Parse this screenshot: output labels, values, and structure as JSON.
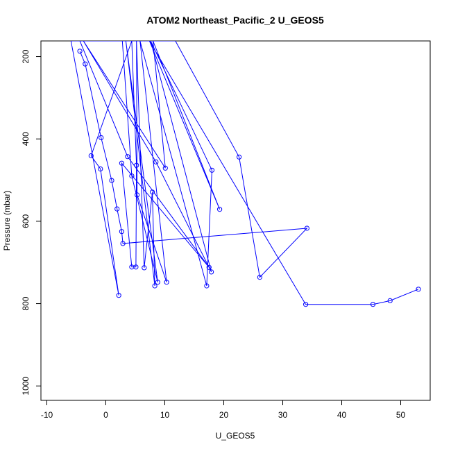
{
  "chart_data": {
    "type": "line",
    "title": "ATOM2 Northeast_Pacific_2 U_GEOS5",
    "xlabel": "U_GEOS5",
    "ylabel": "Pressure (mbar)",
    "xlim": [
      -11,
      55
    ],
    "ylim": [
      1035,
      162
    ],
    "y_reversed": true,
    "xticks": [
      -10,
      0,
      10,
      20,
      30,
      40,
      50
    ],
    "yticks": [
      200,
      400,
      600,
      800,
      1000
    ],
    "grid": false,
    "legend": "none",
    "colors": {
      "series": "#0000ff",
      "axis": "#000000"
    },
    "series": [
      {
        "marker": "open-circle",
        "points": [
          [
            -4.4,
            187
          ],
          [
            -3.5,
            218
          ],
          [
            -0.8,
            397
          ],
          [
            1.0,
            501
          ],
          [
            1.9,
            570
          ],
          [
            2.7,
            625
          ],
          [
            2.9,
            654
          ],
          [
            34.1,
            617
          ],
          [
            26.1,
            736
          ],
          [
            22.6,
            444
          ],
          [
            11.8,
            162
          ],
          [
            -5.9,
            162
          ],
          [
            2.2,
            780
          ],
          [
            -0.9,
            473
          ],
          [
            -2.5,
            441
          ],
          [
            4.4,
            162
          ],
          [
            5.2,
            464
          ],
          [
            5.1,
            711
          ],
          [
            4.4,
            711
          ],
          [
            2.7,
            459
          ],
          [
            17.5,
            712
          ],
          [
            3.7,
            443
          ],
          [
            -4.4,
            162
          ],
          [
            2.8,
            162
          ],
          [
            4.4,
            490
          ],
          [
            8.8,
            748
          ],
          [
            3.4,
            162
          ],
          [
            8.3,
            757
          ],
          [
            7.9,
            529
          ],
          [
            6.5,
            713
          ],
          [
            5.2,
            162
          ],
          [
            5.3,
            536
          ],
          [
            10.3,
            748
          ],
          [
            5.8,
            162
          ],
          [
            17.1,
            757
          ],
          [
            18.0,
            476
          ],
          [
            7.6,
            162
          ],
          [
            17.9,
            723
          ],
          [
            8.5,
            456
          ],
          [
            -3.8,
            162
          ],
          [
            10.1,
            471
          ],
          [
            8.0,
            162
          ],
          [
            19.3,
            571
          ],
          [
            7.4,
            162
          ],
          [
            33.9,
            802
          ],
          [
            45.3,
            802
          ],
          [
            48.2,
            793
          ],
          [
            53.0,
            765
          ]
        ]
      }
    ]
  }
}
